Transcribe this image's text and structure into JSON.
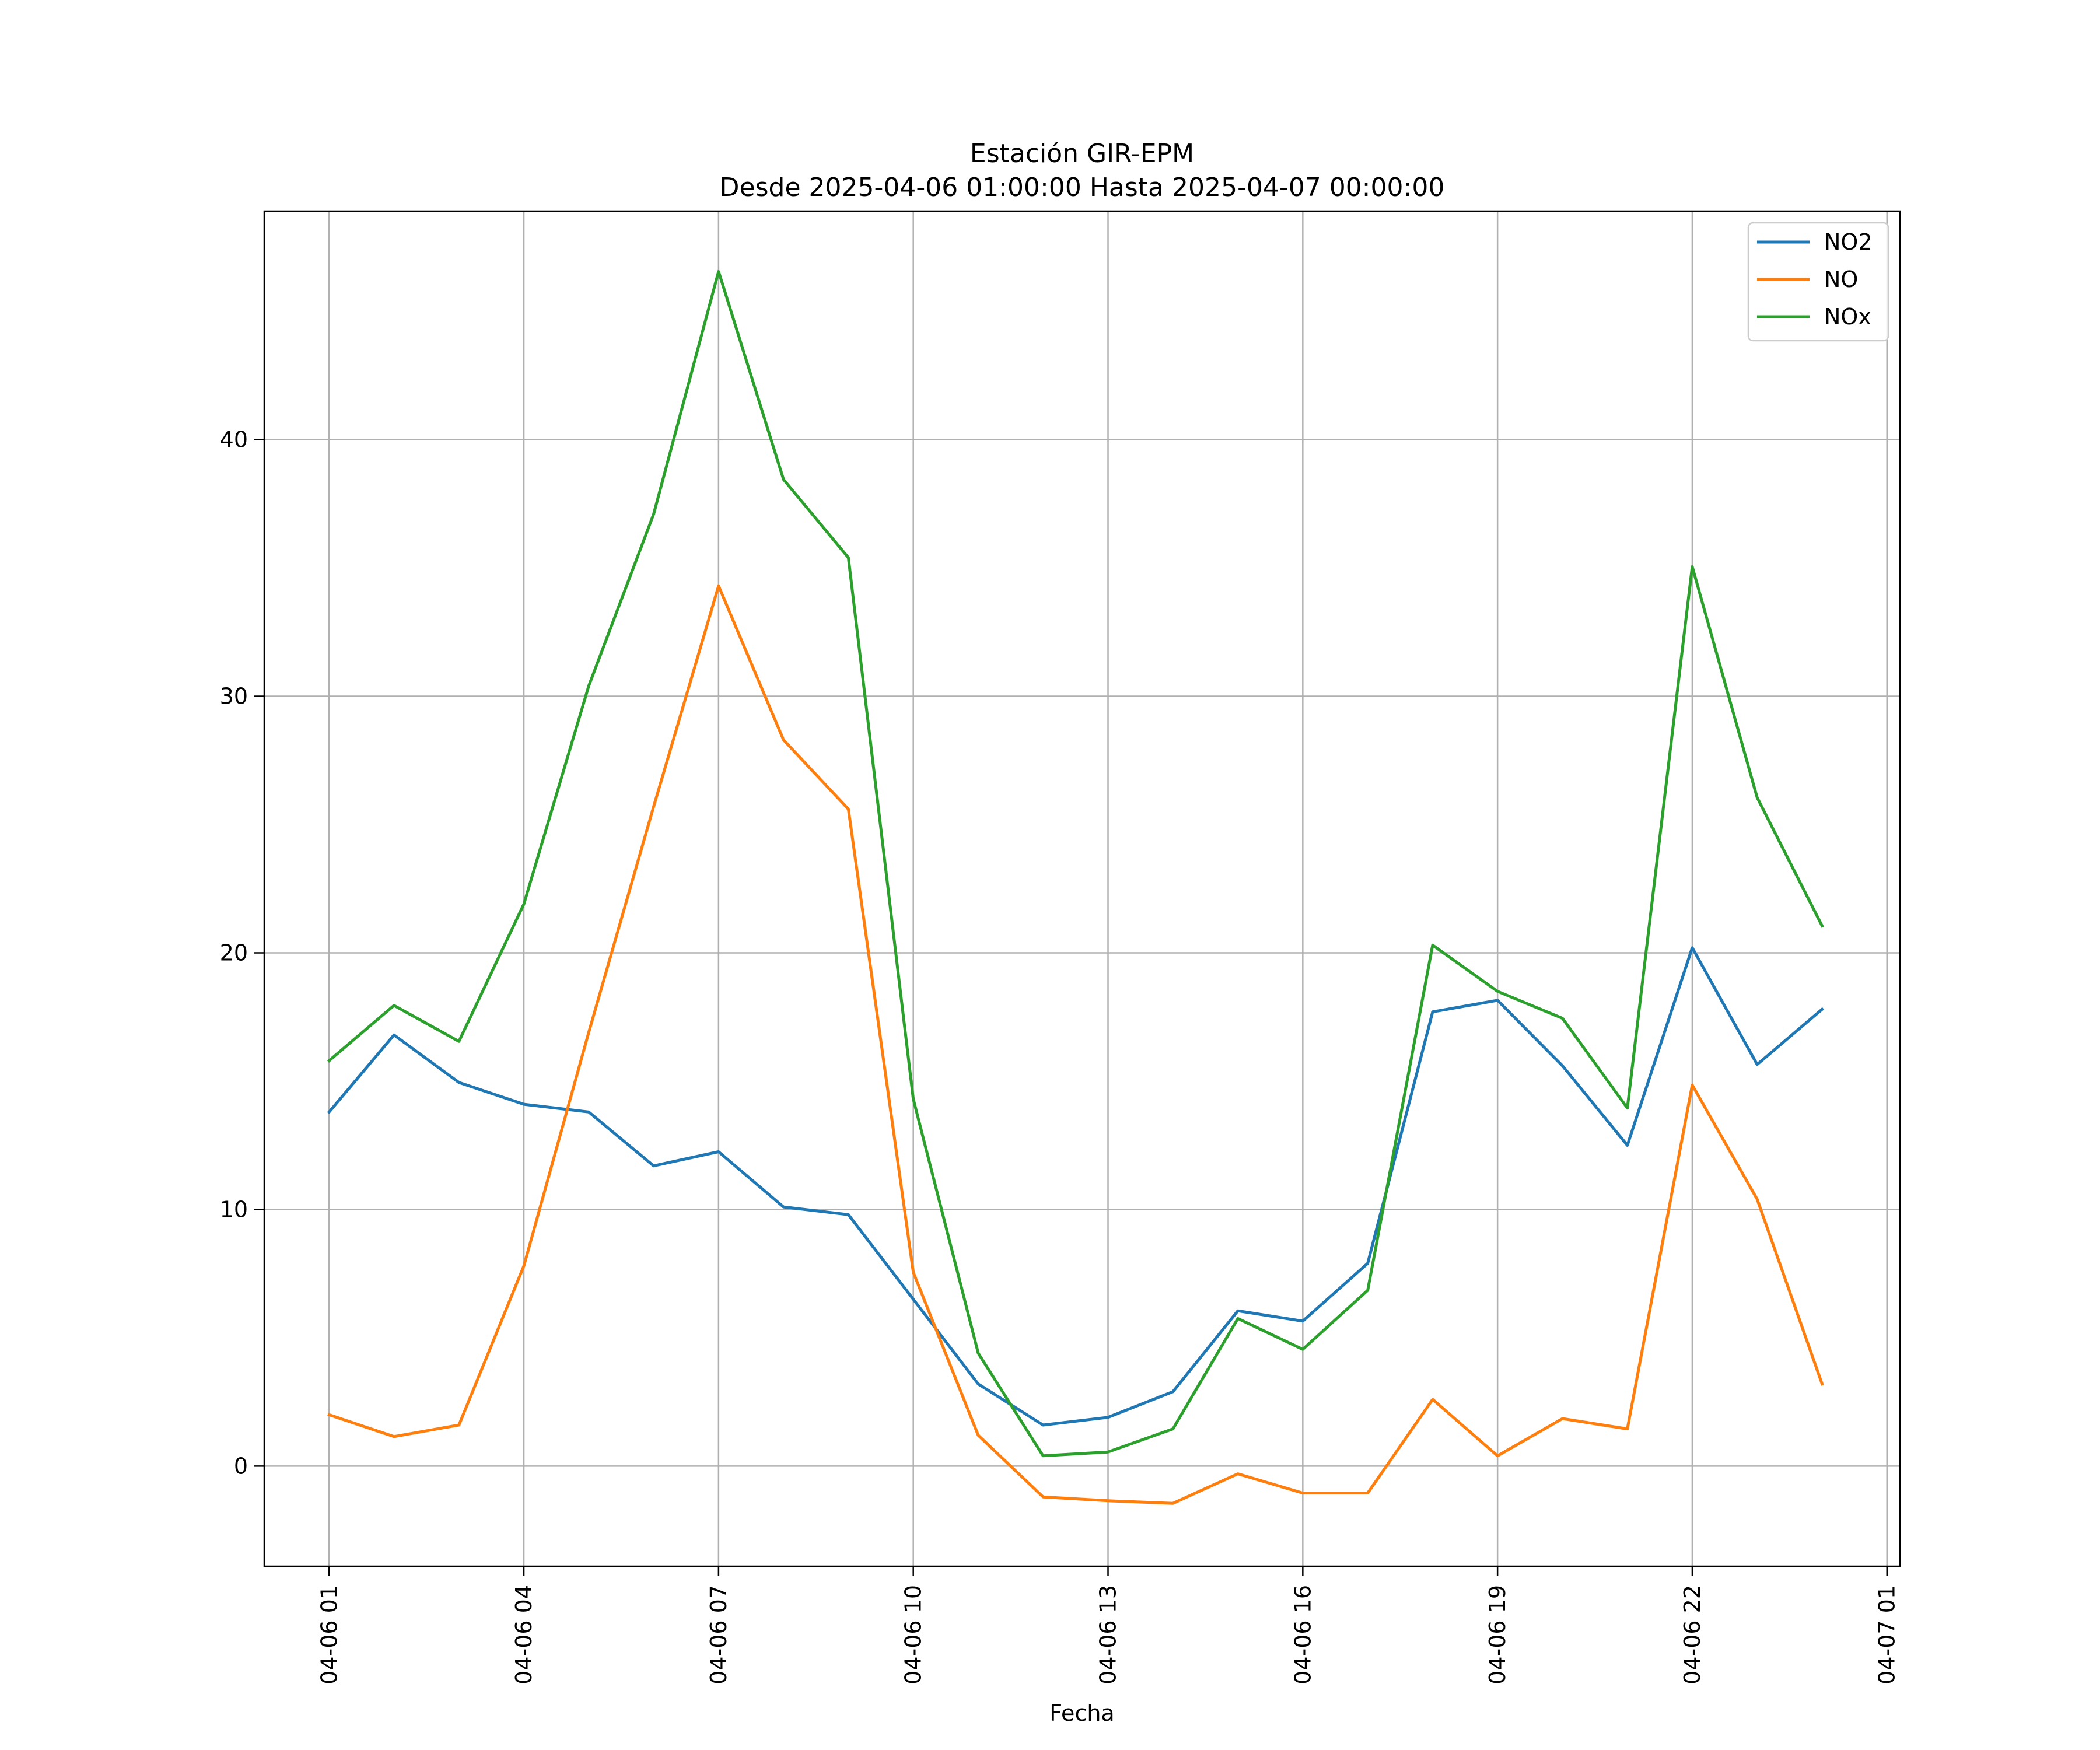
{
  "chart_data": {
    "type": "line",
    "title": "Estación GIR-EPM",
    "subtitle": "Desde 2025-04-06 01:00:00 Hasta 2025-04-07 00:00:00",
    "xlabel": "Fecha",
    "ylabel": "",
    "x": [
      "2025-04-06 01:00",
      "2025-04-06 02:00",
      "2025-04-06 03:00",
      "2025-04-06 04:00",
      "2025-04-06 05:00",
      "2025-04-06 06:00",
      "2025-04-06 07:00",
      "2025-04-06 08:00",
      "2025-04-06 09:00",
      "2025-04-06 10:00",
      "2025-04-06 11:00",
      "2025-04-06 12:00",
      "2025-04-06 13:00",
      "2025-04-06 14:00",
      "2025-04-06 15:00",
      "2025-04-06 16:00",
      "2025-04-06 17:00",
      "2025-04-06 18:00",
      "2025-04-06 19:00",
      "2025-04-06 20:00",
      "2025-04-06 21:00",
      "2025-04-06 22:00",
      "2025-04-06 23:00",
      "2025-04-07 00:00"
    ],
    "xlim": [
      "2025-04-06 00:00",
      "2025-04-07 01:12"
    ],
    "ylim": [
      -3.9,
      48.9
    ],
    "xticks": [
      {
        "value": "2025-04-06 01:00",
        "label": "04-06 01"
      },
      {
        "value": "2025-04-06 04:00",
        "label": "04-06 04"
      },
      {
        "value": "2025-04-06 07:00",
        "label": "04-06 07"
      },
      {
        "value": "2025-04-06 10:00",
        "label": "04-06 10"
      },
      {
        "value": "2025-04-06 13:00",
        "label": "04-06 13"
      },
      {
        "value": "2025-04-06 16:00",
        "label": "04-06 16"
      },
      {
        "value": "2025-04-06 19:00",
        "label": "04-06 19"
      },
      {
        "value": "2025-04-06 22:00",
        "label": "04-06 22"
      },
      {
        "value": "2025-04-07 01:00",
        "label": "04-07 01"
      }
    ],
    "yticks": [
      {
        "value": 0,
        "label": "0"
      },
      {
        "value": 10,
        "label": "10"
      },
      {
        "value": 20,
        "label": "20"
      },
      {
        "value": 30,
        "label": "30"
      },
      {
        "value": 40,
        "label": "40"
      }
    ],
    "grid": true,
    "legend_position": "top-right",
    "series": [
      {
        "name": "NO2",
        "color": "#1f77b4",
        "values": [
          13.8,
          16.8,
          14.95,
          14.1,
          13.8,
          11.7,
          12.25,
          10.1,
          9.8,
          6.5,
          3.2,
          1.6,
          1.9,
          2.9,
          6.05,
          5.65,
          7.9,
          17.7,
          18.15,
          15.6,
          12.5,
          20.2,
          15.65,
          17.8
        ]
      },
      {
        "name": "NO",
        "color": "#ff7f0e",
        "values": [
          2.0,
          1.15,
          1.6,
          7.8,
          16.9,
          25.7,
          34.3,
          28.3,
          25.6,
          7.55,
          1.2,
          -1.2,
          -1.35,
          -1.45,
          -0.3,
          -1.05,
          -1.05,
          2.6,
          0.4,
          1.85,
          1.45,
          14.85,
          10.4,
          3.2
        ]
      },
      {
        "name": "NOx",
        "color": "#2ca02c",
        "values": [
          15.8,
          17.95,
          16.55,
          21.9,
          30.4,
          37.1,
          46.55,
          38.45,
          35.4,
          14.3,
          4.4,
          0.4,
          0.55,
          1.45,
          5.75,
          4.55,
          6.85,
          20.3,
          18.5,
          17.45,
          13.95,
          35.05,
          26.05,
          21.05
        ]
      }
    ]
  }
}
